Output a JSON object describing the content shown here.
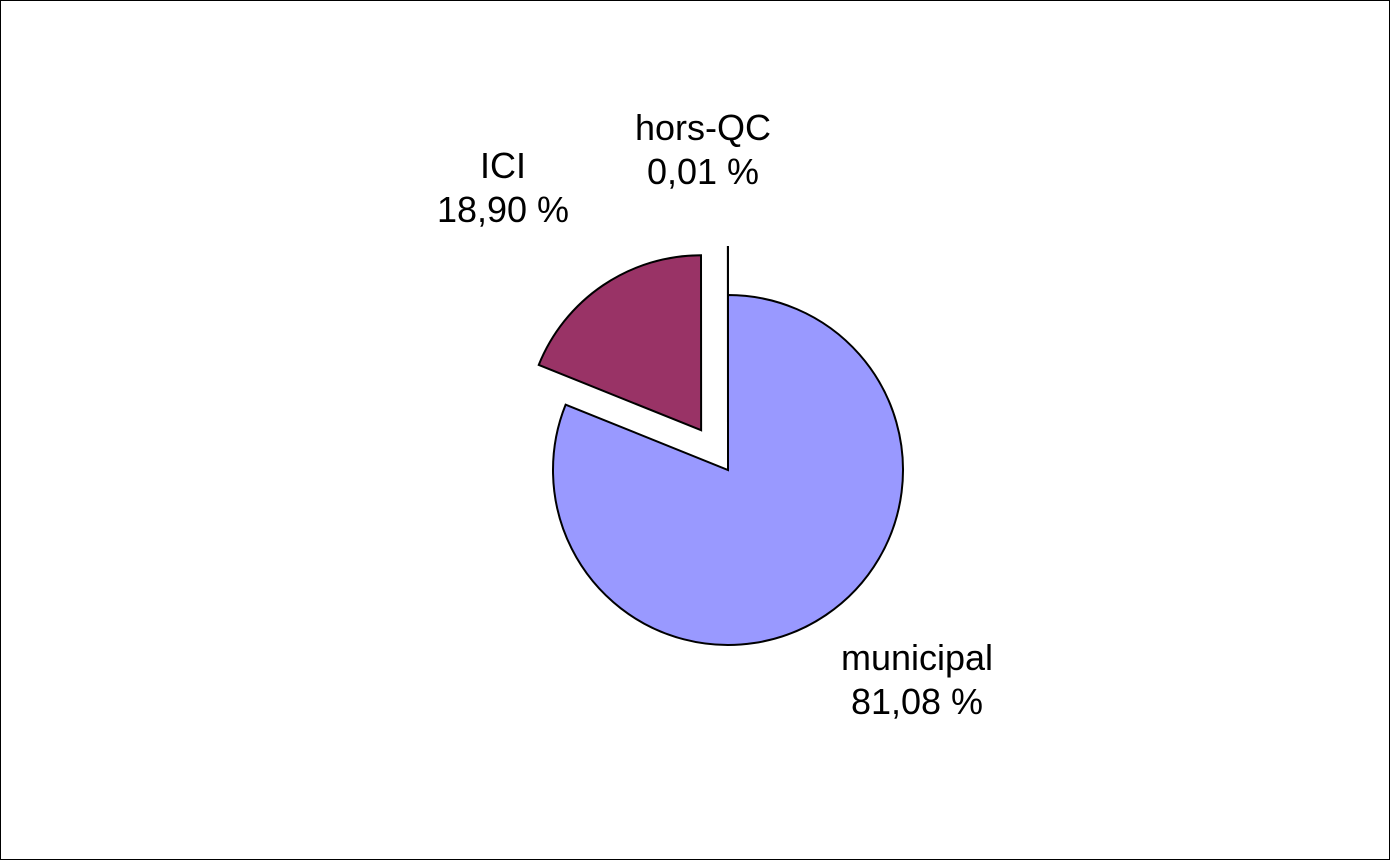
{
  "chart_data": {
    "type": "pie",
    "title": "",
    "slices": [
      {
        "label": "municipal",
        "value": 81.08,
        "display": "81,08 %",
        "color": "#9999FF",
        "exploded": false
      },
      {
        "label": "ICI",
        "value": 18.9,
        "display": "18,90 %",
        "color": "#993366",
        "exploded": true
      },
      {
        "label": "hors-QC",
        "value": 0.01,
        "display": "0,01 %",
        "color": "#FFFFCC",
        "exploded": true
      }
    ],
    "legend": "none"
  }
}
